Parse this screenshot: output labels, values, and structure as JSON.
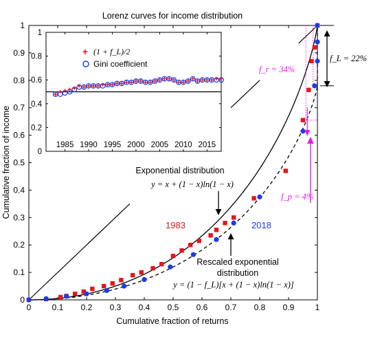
{
  "colors": {
    "red": "#e8141b",
    "blue": "#1b3be8",
    "magenta": "#e619e6",
    "black": "#000000"
  },
  "chart_data": [
    {
      "type": "scatter",
      "title": "Lorenz curves for income distribution",
      "xlabel": "Cumulative fraction of returns",
      "ylabel": "Cumulative fraction of income",
      "xlim": [
        0,
        1
      ],
      "ylim": [
        0,
        1
      ],
      "xticks": [
        "0",
        "0.1",
        "0.2",
        "0.3",
        "0.4",
        "0.5",
        "0.6",
        "0.7",
        "0.8",
        "0.9",
        "1"
      ],
      "yticks": [
        "0",
        "0.1",
        "0.2",
        "0.3",
        "0.4",
        "0.5",
        "0.6",
        "0.7",
        "0.8",
        "0.9",
        "1"
      ],
      "grid": false,
      "f_L": 0.22,
      "series": [
        {
          "name": "1983",
          "marker": "square",
          "color": "#e8141b",
          "x": [
            0.0,
            0.06,
            0.11,
            0.13,
            0.16,
            0.19,
            0.22,
            0.26,
            0.29,
            0.32,
            0.36,
            0.39,
            0.43,
            0.46,
            0.5,
            0.53,
            0.56,
            0.59,
            0.63,
            0.65,
            0.68,
            0.71,
            0.78,
            0.89,
            0.95,
            0.97,
            0.98,
            0.99,
            1.0
          ],
          "y": [
            0.0,
            0.003,
            0.01,
            0.014,
            0.022,
            0.03,
            0.04,
            0.05,
            0.06,
            0.072,
            0.09,
            0.1,
            0.115,
            0.13,
            0.16,
            0.18,
            0.2,
            0.215,
            0.235,
            0.255,
            0.28,
            0.3,
            0.37,
            0.47,
            0.655,
            0.765,
            0.87,
            0.92,
            1.0
          ]
        },
        {
          "name": "2018",
          "marker": "circle",
          "color": "#1b3be8",
          "x": [
            0.0,
            0.06,
            0.13,
            0.2,
            0.27,
            0.33,
            0.4,
            0.49,
            0.57,
            0.65,
            0.71,
            0.8,
            0.95,
            0.99,
            1.0,
            1.0,
            1.0
          ],
          "y": [
            0.0,
            0.004,
            0.013,
            0.022,
            0.034,
            0.05,
            0.074,
            0.12,
            0.165,
            0.22,
            0.28,
            0.375,
            0.615,
            0.78,
            0.87,
            0.94,
            1.0
          ]
        }
      ],
      "curves": [
        {
          "label_line1": "Exponential distribution",
          "label_line2": "y = x + (1 − x)ln(1 − x)",
          "style": "solid",
          "scale": 1.0
        },
        {
          "label_line1": "Rescaled exponential",
          "label_line2": "distribution",
          "label_line3": "y = (1 − f_L)[x + (1 − x)ln(1 − x)]",
          "style": "dashed",
          "scale": 0.78
        }
      ],
      "annotations": {
        "f_r": "f_r = 34%",
        "f_p": "f_p = 4%",
        "f_L": "f_L = 22%",
        "label_1983": "1983",
        "label_2018": "2018"
      }
    },
    {
      "type": "scatter",
      "inset": true,
      "xlim": [
        1981,
        2018
      ],
      "ylim": [
        0,
        1
      ],
      "xticks": [
        "1985",
        "1990",
        "1995",
        "2000",
        "2005",
        "2010",
        "2015"
      ],
      "yticks": [
        "0",
        "0.2",
        "0.4",
        "0.6",
        "0.8",
        "1"
      ],
      "hline": 0.5,
      "legend": [
        "(1 + f_L)/2",
        "Gini coefficient"
      ],
      "legend_position": "top-left",
      "x": [
        1983,
        1984,
        1985,
        1986,
        1987,
        1988,
        1989,
        1990,
        1991,
        1992,
        1993,
        1994,
        1995,
        1996,
        1997,
        1998,
        1999,
        2000,
        2001,
        2002,
        2003,
        2004,
        2005,
        2006,
        2007,
        2008,
        2009,
        2010,
        2011,
        2012,
        2013,
        2014,
        2015,
        2016,
        2017,
        2018
      ],
      "plus": [
        0.48,
        0.5,
        0.51,
        0.52,
        0.53,
        0.55,
        0.54,
        0.55,
        0.55,
        0.55,
        0.56,
        0.56,
        0.56,
        0.57,
        0.57,
        0.58,
        0.58,
        0.59,
        0.59,
        0.58,
        0.58,
        0.59,
        0.6,
        0.61,
        0.61,
        0.6,
        0.58,
        0.58,
        0.59,
        0.61,
        0.59,
        0.6,
        0.6,
        0.6,
        0.61,
        0.61
      ],
      "gini": [
        0.48,
        0.48,
        0.49,
        0.5,
        0.52,
        0.54,
        0.54,
        0.55,
        0.55,
        0.55,
        0.55,
        0.56,
        0.56,
        0.57,
        0.57,
        0.58,
        0.58,
        0.59,
        0.59,
        0.58,
        0.58,
        0.59,
        0.6,
        0.61,
        0.61,
        0.6,
        0.58,
        0.58,
        0.59,
        0.61,
        0.59,
        0.6,
        0.6,
        0.6,
        0.6,
        0.6
      ]
    }
  ]
}
